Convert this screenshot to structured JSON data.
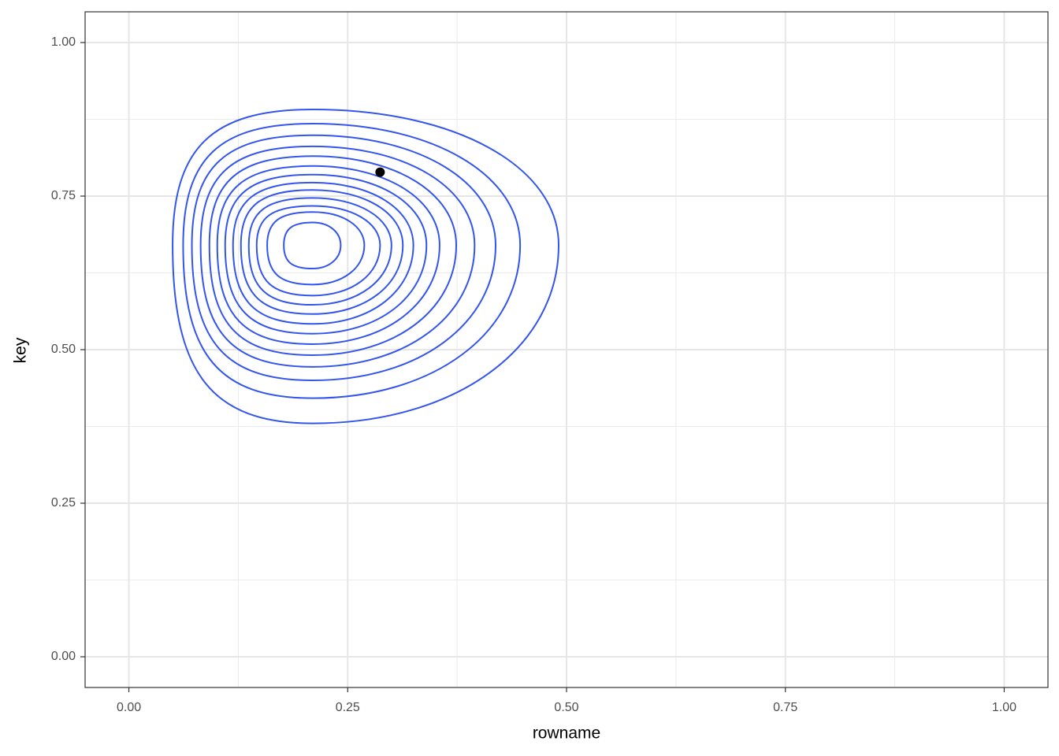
{
  "chart_data": {
    "type": "contour",
    "x_label": "rowname",
    "y_label": "key",
    "xlim": [
      -0.05,
      1.05
    ],
    "ylim": [
      -0.05,
      1.05
    ],
    "xticks": [
      {
        "value": 0,
        "label": "0.00"
      },
      {
        "value": 0.25,
        "label": "0.25"
      },
      {
        "value": 0.5,
        "label": "0.50"
      },
      {
        "value": 0.75,
        "label": "0.75"
      },
      {
        "value": 1,
        "label": "1.00"
      }
    ],
    "yticks": [
      {
        "value": 0,
        "label": "0.00"
      },
      {
        "value": 0.25,
        "label": "0.25"
      },
      {
        "value": 0.5,
        "label": "0.50"
      },
      {
        "value": 0.75,
        "label": "0.75"
      },
      {
        "value": 1,
        "label": "1.00"
      }
    ],
    "x_minor_ticks": [
      0.125,
      0.375,
      0.625,
      0.875
    ],
    "y_minor_ticks": [
      0.125,
      0.375,
      0.625,
      0.875
    ],
    "grid": true,
    "contour_color": "#3355ee",
    "peak": {
      "x": 0.21,
      "y": 0.67
    },
    "contours": {
      "xmin": [
        0.05,
        0.062,
        0.072,
        0.082,
        0.092,
        0.101,
        0.11,
        0.119,
        0.128,
        0.137,
        0.146,
        0.158,
        0.177
      ],
      "xmax": [
        0.491,
        0.447,
        0.419,
        0.395,
        0.374,
        0.355,
        0.34,
        0.325,
        0.313,
        0.3,
        0.287,
        0.269,
        0.242
      ],
      "ymin": [
        0.38,
        0.421,
        0.45,
        0.472,
        0.491,
        0.509,
        0.526,
        0.542,
        0.558,
        0.573,
        0.588,
        0.606,
        0.632
      ],
      "ymax": [
        0.891,
        0.868,
        0.849,
        0.831,
        0.815,
        0.799,
        0.785,
        0.772,
        0.76,
        0.747,
        0.734,
        0.724,
        0.707
      ]
    },
    "points": {
      "x": [
        0.287
      ],
      "y": [
        0.789
      ],
      "color": "#000000"
    }
  }
}
